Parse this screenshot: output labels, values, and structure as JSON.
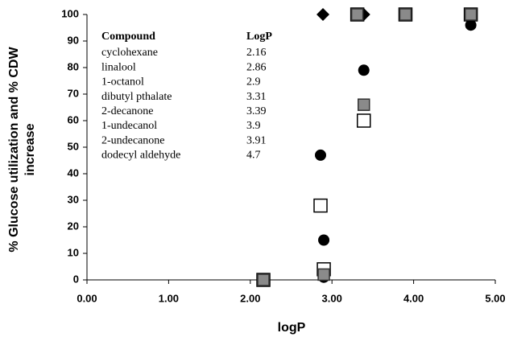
{
  "chart_data": {
    "type": "scatter",
    "xlabel": "logP",
    "ylabel": [
      "% Glucose utilization and % CDW",
      "increase"
    ],
    "xlim": [
      0,
      5
    ],
    "xticks": [
      {
        "value": 0,
        "label": "0.00"
      },
      {
        "value": 1,
        "label": "1.00"
      },
      {
        "value": 2,
        "label": "2.00"
      },
      {
        "value": 3,
        "label": "3.00"
      },
      {
        "value": 4,
        "label": "4.00"
      },
      {
        "value": 5,
        "label": "5.00"
      }
    ],
    "ylim": [
      0,
      100
    ],
    "yticks": [
      0,
      10,
      20,
      30,
      40,
      50,
      60,
      70,
      80,
      90,
      100
    ],
    "series": [
      {
        "marker": "diamond",
        "color": "#000000",
        "x": [
          2.16,
          2.89,
          3.39
        ],
        "values": [
          0,
          100,
          100
        ]
      },
      {
        "marker": "circle",
        "color": "#000000",
        "x": [
          2.16,
          2.86,
          2.9,
          2.9,
          3.31,
          3.39,
          3.9,
          4.7
        ],
        "values": [
          0,
          47,
          15,
          1,
          100,
          79,
          100,
          96
        ]
      },
      {
        "marker": "open-square",
        "color": "#000000",
        "x": [
          2.16,
          2.86,
          2.9,
          3.31,
          3.39,
          3.9,
          4.7
        ],
        "values": [
          0,
          28,
          4,
          100,
          60,
          100,
          100
        ]
      },
      {
        "marker": "gray-square",
        "color": "#8a8a8a",
        "x": [
          2.16,
          2.9,
          3.31,
          3.39,
          3.9,
          4.7
        ],
        "values": [
          0,
          2,
          100,
          66,
          100,
          100
        ]
      }
    ],
    "annotation_table": {
      "header": [
        "Compound",
        "LogP"
      ],
      "rows": [
        [
          "cyclohexane",
          2.16
        ],
        [
          "linalool",
          2.86
        ],
        [
          "1-octanol",
          2.9
        ],
        [
          "dibutyl pthalate",
          3.31
        ],
        [
          "2-decanone",
          3.39
        ],
        [
          "1-undecanol",
          3.9
        ],
        [
          "2-undecanone",
          3.91
        ],
        [
          "dodecyl aldehyde",
          4.7
        ]
      ]
    }
  }
}
